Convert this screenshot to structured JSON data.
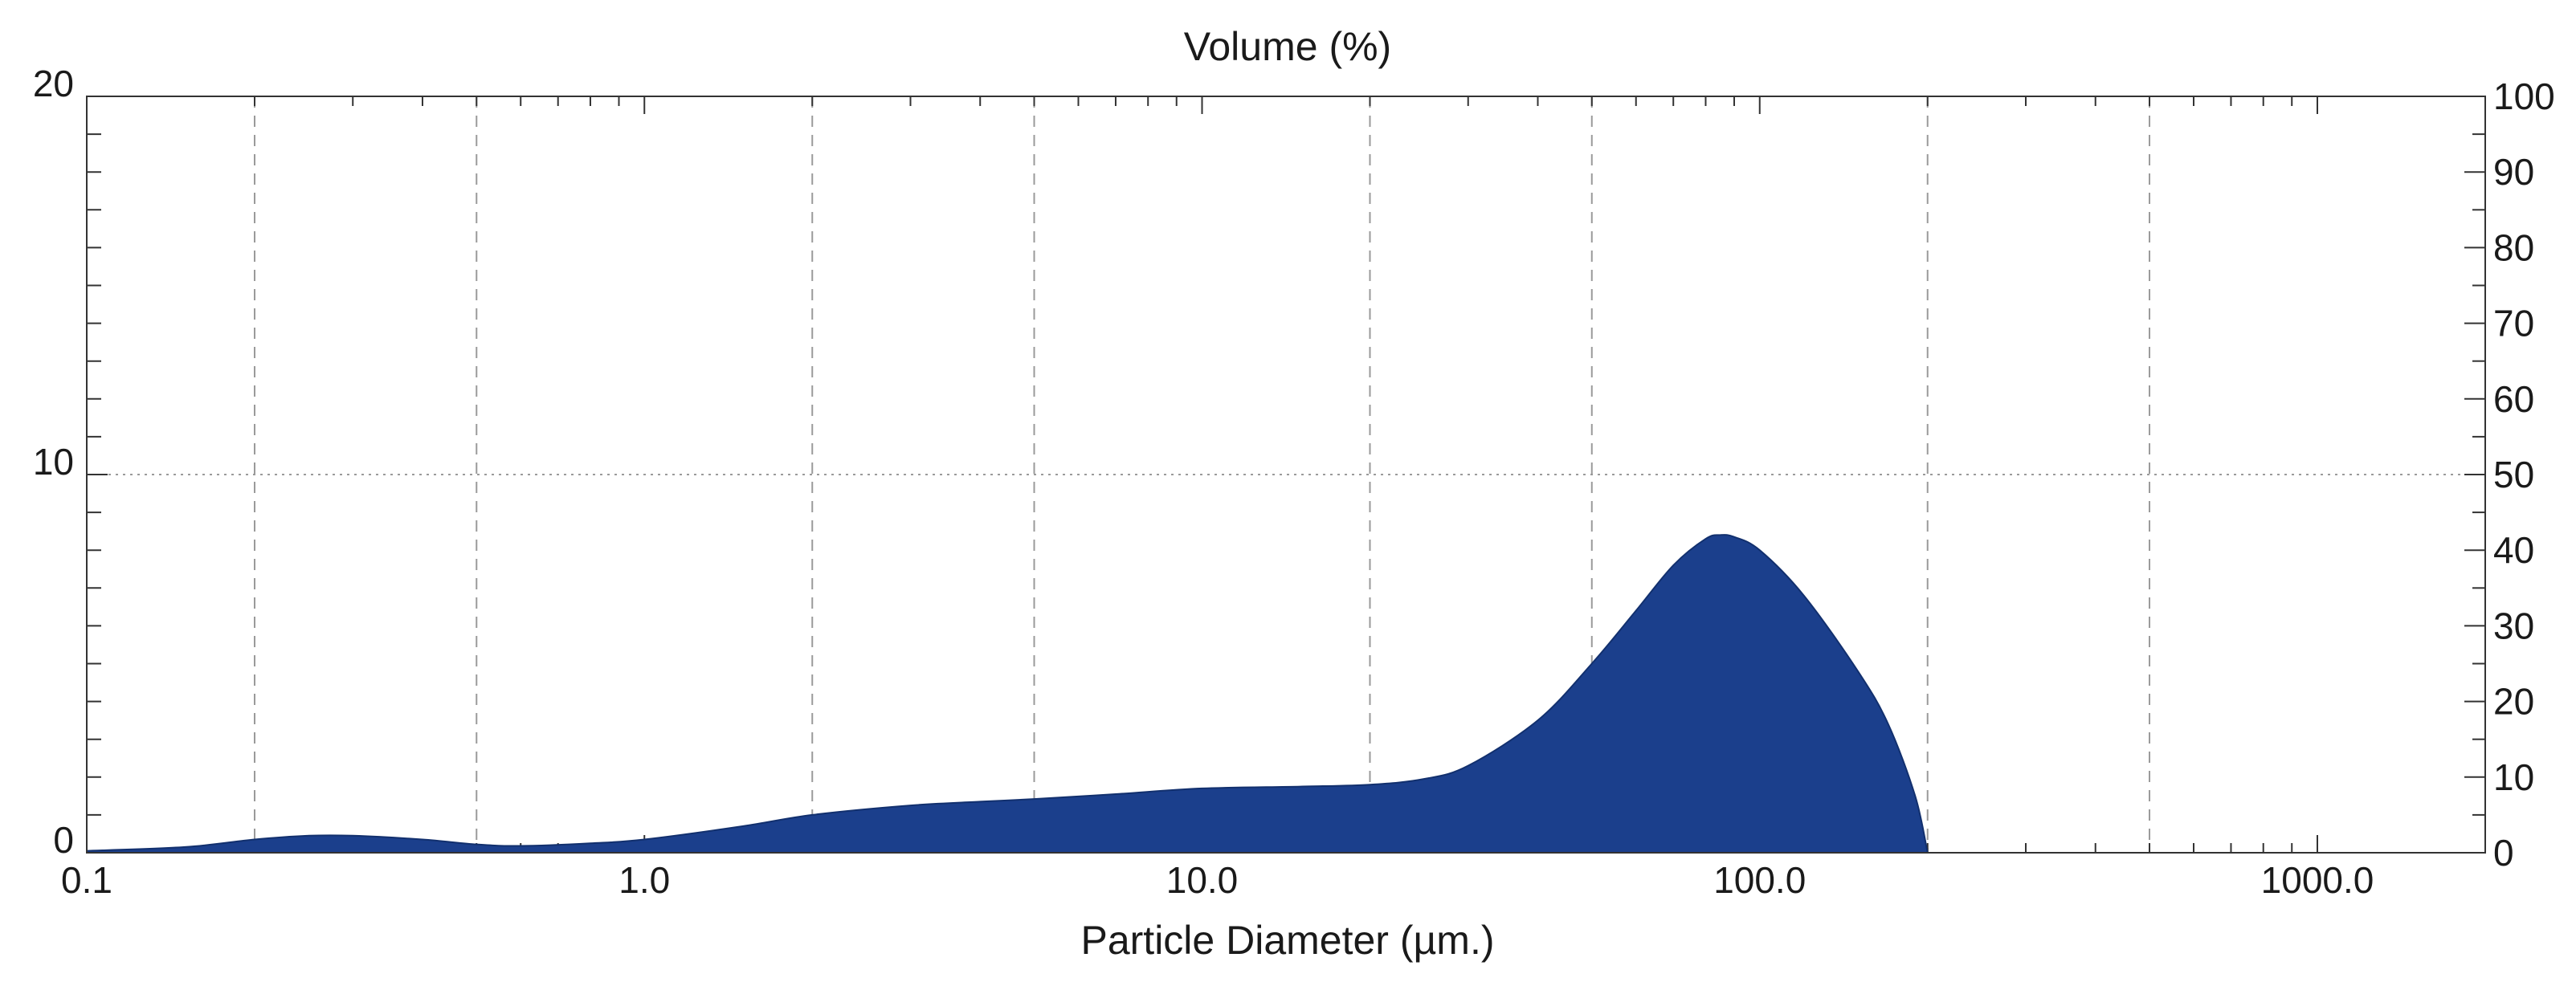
{
  "chart_data": {
    "type": "area",
    "title": "Volume (%)",
    "xlabel": "Particle Diameter (µm.)",
    "ylabel": "",
    "x_scale": "log",
    "xlim": [
      0.1,
      2000
    ],
    "ylim": [
      0,
      20
    ],
    "y2lim": [
      0,
      100
    ],
    "grid": true,
    "fill_color": "#1b3f8c",
    "x_tick_labels": [
      {
        "value": 0.1,
        "label": "0.1"
      },
      {
        "value": 1,
        "label": "1.0"
      },
      {
        "value": 10,
        "label": "10.0"
      },
      {
        "value": 100,
        "label": "100.0"
      },
      {
        "value": 1000,
        "label": "1000.0"
      }
    ],
    "y_tick_labels": [
      {
        "value": 0,
        "label": "0"
      },
      {
        "value": 10,
        "label": "10"
      },
      {
        "value": 20,
        "label": "20"
      }
    ],
    "y2_tick_labels": [
      {
        "value": 0,
        "label": "0"
      },
      {
        "value": 10,
        "label": "10"
      },
      {
        "value": 20,
        "label": "20"
      },
      {
        "value": 30,
        "label": "30"
      },
      {
        "value": 40,
        "label": "40"
      },
      {
        "value": 50,
        "label": "50"
      },
      {
        "value": 60,
        "label": "60"
      },
      {
        "value": 70,
        "label": "70"
      },
      {
        "value": 80,
        "label": "80"
      },
      {
        "value": 90,
        "label": "90"
      },
      {
        "value": 100,
        "label": "100"
      }
    ],
    "series": [
      {
        "x": [
          0.1,
          0.15,
          0.2,
          0.25,
          0.3,
          0.4,
          0.5,
          0.6,
          0.8,
          1.0,
          1.5,
          2,
          3,
          4,
          5,
          7,
          10,
          15,
          20,
          25,
          30,
          40,
          50,
          60,
          70,
          80,
          85,
          90,
          100,
          120,
          150,
          170,
          190,
          200
        ],
        "y": [
          0.05,
          0.15,
          0.35,
          0.45,
          0.45,
          0.35,
          0.22,
          0.18,
          0.25,
          0.35,
          0.7,
          1.0,
          1.25,
          1.35,
          1.42,
          1.55,
          1.7,
          1.75,
          1.8,
          1.95,
          2.3,
          3.5,
          5.0,
          6.4,
          7.6,
          8.3,
          8.4,
          8.35,
          8.0,
          6.8,
          4.8,
          3.4,
          1.5,
          0.0
        ]
      }
    ]
  }
}
